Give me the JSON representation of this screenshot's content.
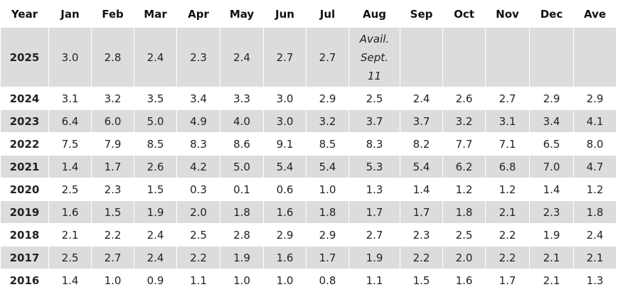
{
  "table": {
    "header": [
      "Year",
      "Jan",
      "Feb",
      "Mar",
      "Apr",
      "May",
      "Jun",
      "Jul",
      "Aug",
      "Sep",
      "Oct",
      "Nov",
      "Dec",
      "Ave"
    ],
    "rows": [
      [
        "2025",
        "3.0",
        "2.8",
        "2.4",
        "2.3",
        "2.4",
        "2.7",
        "2.7",
        "Avail. Sept. 11"
      ],
      [
        "2024",
        "3.1",
        "3.2",
        "3.5",
        "3.4",
        "3.3",
        "3.0",
        "2.9",
        "2.5",
        "2.4",
        "2.6",
        "2.7",
        "2.9",
        "2.9"
      ],
      [
        "2023",
        "6.4",
        "6.0",
        "5.0",
        "4.9",
        "4.0",
        "3.0",
        "3.2",
        "3.7",
        "3.7",
        "3.2",
        "3.1",
        "3.4",
        "4.1"
      ],
      [
        "2022",
        "7.5",
        "7.9",
        "8.5",
        "8.3",
        "8.6",
        "9.1",
        "8.5",
        "8.3",
        "8.2",
        "7.7",
        "7.1",
        "6.5",
        "8.0"
      ],
      [
        "2021",
        "1.4",
        "1.7",
        "2.6",
        "4.2",
        "5.0",
        "5.4",
        "5.4",
        "5.3",
        "5.4",
        "6.2",
        "6.8",
        "7.0",
        "4.7"
      ],
      [
        "2020",
        "2.5",
        "2.3",
        "1.5",
        "0.3",
        "0.1",
        "0.6",
        "1.0",
        "1.3",
        "1.4",
        "1.2",
        "1.2",
        "1.4",
        "1.2"
      ],
      [
        "2019",
        "1.6",
        "1.5",
        "1.9",
        "2.0",
        "1.8",
        "1.6",
        "1.8",
        "1.7",
        "1.7",
        "1.8",
        "2.1",
        "2.3",
        "1.8"
      ],
      [
        "2018",
        "2.1",
        "2.2",
        "2.4",
        "2.5",
        "2.8",
        "2.9",
        "2.9",
        "2.7",
        "2.3",
        "2.5",
        "2.2",
        "1.9",
        "2.4"
      ],
      [
        "2017",
        "2.5",
        "2.7",
        "2.4",
        "2.2",
        "1.9",
        "1.6",
        "1.7",
        "1.9",
        "2.2",
        "2.0",
        "2.2",
        "2.1",
        "2.1"
      ],
      [
        "2016",
        "1.4",
        "1.0",
        "0.9",
        "1.1",
        "1.0",
        "1.0",
        "0.8",
        "1.1",
        "1.5",
        "1.6",
        "1.7",
        "2.1",
        "1.3"
      ]
    ]
  }
}
